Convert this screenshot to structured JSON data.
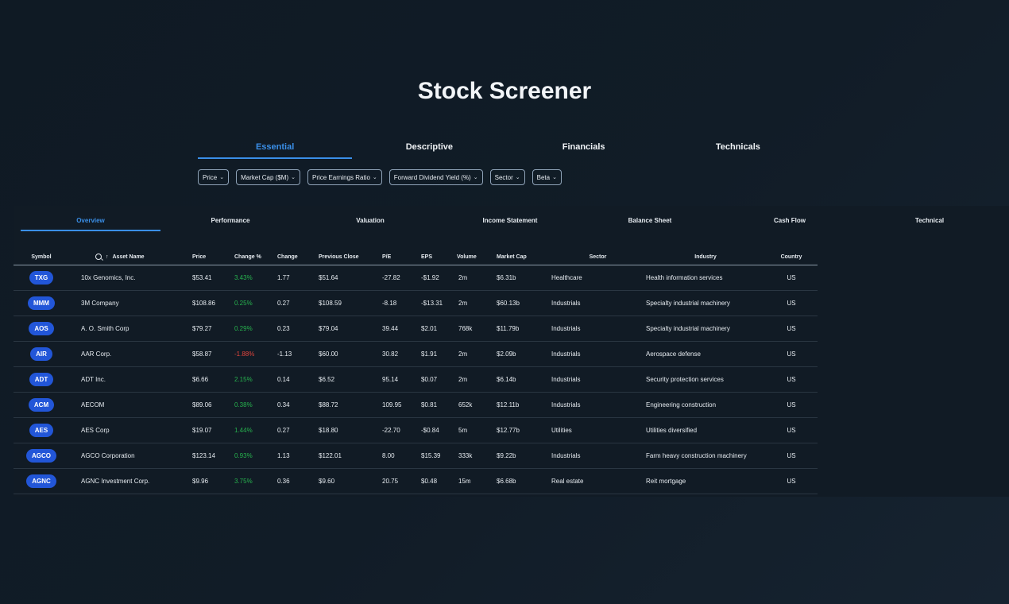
{
  "page": {
    "title": "Stock Screener"
  },
  "main_tabs": [
    {
      "label": "Essential",
      "active": true
    },
    {
      "label": "Descriptive",
      "active": false
    },
    {
      "label": "Financials",
      "active": false
    },
    {
      "label": "Technicals",
      "active": false
    }
  ],
  "filters": [
    "Price",
    "Market Cap ($M)",
    "Price Earnings Ratio",
    "Forward Dividend Yield (%)",
    "Sector",
    "Beta"
  ],
  "sub_tabs": [
    {
      "label": "Overview",
      "active": true
    },
    {
      "label": "Performance",
      "active": false
    },
    {
      "label": "Valuation",
      "active": false
    },
    {
      "label": "Income Statement",
      "active": false
    },
    {
      "label": "Balance Sheet",
      "active": false
    },
    {
      "label": "Cash Flow",
      "active": false
    },
    {
      "label": "Technical",
      "active": false
    }
  ],
  "table": {
    "columns": [
      "Symbol",
      "Asset Name",
      "Price",
      "Change %",
      "Change",
      "Previous Close",
      "P/E",
      "EPS",
      "Volume",
      "Market Cap",
      "Sector",
      "Industry",
      "Country"
    ],
    "sort_icon": "arrow-up-icon",
    "search_icon": "search-icon",
    "rows": [
      {
        "symbol": "TXG",
        "name": "10x Genomics, Inc.",
        "price": "$53.41",
        "change_pct": "3.43%",
        "change": "1.77",
        "prev_close": "$51.64",
        "pe": "-27.82",
        "eps": "-$1.92",
        "volume": "2m",
        "market_cap": "$6.31b",
        "sector": "Healthcare",
        "industry": "Health information services",
        "country": "US",
        "dir": "pos"
      },
      {
        "symbol": "MMM",
        "name": "3M Company",
        "price": "$108.86",
        "change_pct": "0.25%",
        "change": "0.27",
        "prev_close": "$108.59",
        "pe": "-8.18",
        "eps": "-$13.31",
        "volume": "2m",
        "market_cap": "$60.13b",
        "sector": "Industrials",
        "industry": "Specialty industrial machinery",
        "country": "US",
        "dir": "pos"
      },
      {
        "symbol": "AOS",
        "name": "A. O. Smith Corp",
        "price": "$79.27",
        "change_pct": "0.29%",
        "change": "0.23",
        "prev_close": "$79.04",
        "pe": "39.44",
        "eps": "$2.01",
        "volume": "768k",
        "market_cap": "$11.79b",
        "sector": "Industrials",
        "industry": "Specialty industrial machinery",
        "country": "US",
        "dir": "pos"
      },
      {
        "symbol": "AIR",
        "name": "AAR Corp.",
        "price": "$58.87",
        "change_pct": "-1.88%",
        "change": "-1.13",
        "prev_close": "$60.00",
        "pe": "30.82",
        "eps": "$1.91",
        "volume": "2m",
        "market_cap": "$2.09b",
        "sector": "Industrials",
        "industry": "Aerospace defense",
        "country": "US",
        "dir": "neg"
      },
      {
        "symbol": "ADT",
        "name": "ADT Inc.",
        "price": "$6.66",
        "change_pct": "2.15%",
        "change": "0.14",
        "prev_close": "$6.52",
        "pe": "95.14",
        "eps": "$0.07",
        "volume": "2m",
        "market_cap": "$6.14b",
        "sector": "Industrials",
        "industry": "Security protection services",
        "country": "US",
        "dir": "pos"
      },
      {
        "symbol": "ACM",
        "name": "AECOM",
        "price": "$89.06",
        "change_pct": "0.38%",
        "change": "0.34",
        "prev_close": "$88.72",
        "pe": "109.95",
        "eps": "$0.81",
        "volume": "652k",
        "market_cap": "$12.11b",
        "sector": "Industrials",
        "industry": "Engineering construction",
        "country": "US",
        "dir": "pos"
      },
      {
        "symbol": "AES",
        "name": "AES Corp",
        "price": "$19.07",
        "change_pct": "1.44%",
        "change": "0.27",
        "prev_close": "$18.80",
        "pe": "-22.70",
        "eps": "-$0.84",
        "volume": "5m",
        "market_cap": "$12.77b",
        "sector": "Utilities",
        "industry": "Utilities diversified",
        "country": "US",
        "dir": "pos"
      },
      {
        "symbol": "AGCO",
        "name": "AGCO Corporation",
        "price": "$123.14",
        "change_pct": "0.93%",
        "change": "1.13",
        "prev_close": "$122.01",
        "pe": "8.00",
        "eps": "$15.39",
        "volume": "333k",
        "market_cap": "$9.22b",
        "sector": "Industrials",
        "industry": "Farm heavy construction machinery",
        "country": "US",
        "dir": "pos"
      },
      {
        "symbol": "AGNC",
        "name": "AGNC Investment Corp.",
        "price": "$9.96",
        "change_pct": "3.75%",
        "change": "0.36",
        "prev_close": "$9.60",
        "pe": "20.75",
        "eps": "$0.48",
        "volume": "15m",
        "market_cap": "$6.68b",
        "sector": "Real estate",
        "industry": "Reit mortgage",
        "country": "US",
        "dir": "pos"
      }
    ]
  },
  "colors": {
    "accent": "#3a8fe8",
    "symbol_pill": "#2256d8",
    "positive": "#27b24e",
    "negative": "#e0443c"
  }
}
